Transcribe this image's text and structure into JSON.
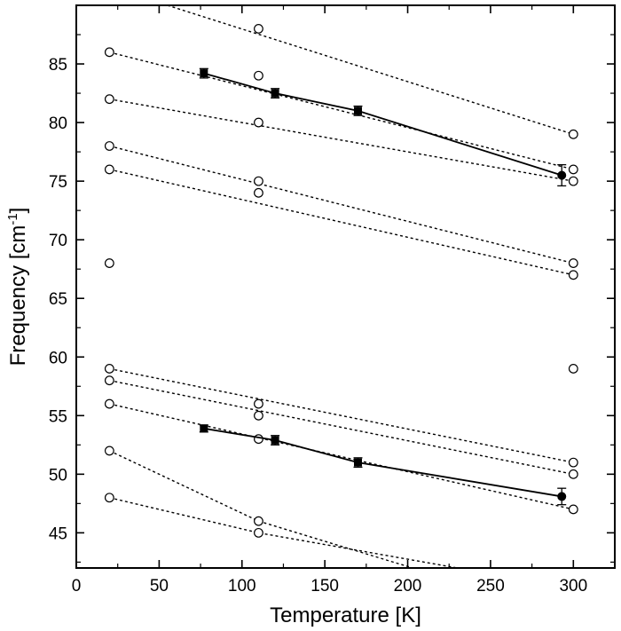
{
  "chart_data": {
    "type": "scatter",
    "title": "",
    "xlabel": "Temperature [K]",
    "ylabel_main": "Frequency [cm",
    "ylabel_sup": "-1",
    "ylabel_close": "]",
    "xlim": [
      0,
      325
    ],
    "ylim": [
      42,
      90
    ],
    "xticks": [
      0,
      50,
      100,
      150,
      200,
      250,
      300
    ],
    "yticks": [
      45,
      50,
      55,
      60,
      65,
      70,
      75,
      80,
      85
    ],
    "grid": false,
    "legend": "none",
    "measured_series": [
      {
        "marker": "filled-square",
        "line": "solid",
        "points": [
          {
            "x": 77,
            "y": 84.2,
            "err": 0.4
          },
          {
            "x": 120,
            "y": 82.5,
            "err": 0.4
          },
          {
            "x": 170,
            "y": 81.0,
            "err": 0.4
          },
          {
            "x": 293,
            "y": 75.5,
            "err": 0.9
          }
        ]
      },
      {
        "marker": "filled-square",
        "line": "solid",
        "points": [
          {
            "x": 77,
            "y": 53.9,
            "err": 0.3
          },
          {
            "x": 120,
            "y": 52.9,
            "err": 0.4
          },
          {
            "x": 170,
            "y": 51.0,
            "err": 0.4
          },
          {
            "x": 293,
            "y": 48.1,
            "err": 0.7
          }
        ]
      }
    ],
    "calculated_points": [
      {
        "x": 20,
        "y": 86
      },
      {
        "x": 20,
        "y": 82
      },
      {
        "x": 20,
        "y": 78
      },
      {
        "x": 20,
        "y": 76
      },
      {
        "x": 20,
        "y": 68
      },
      {
        "x": 20,
        "y": 59
      },
      {
        "x": 20,
        "y": 58
      },
      {
        "x": 20,
        "y": 56
      },
      {
        "x": 20,
        "y": 52
      },
      {
        "x": 20,
        "y": 48
      },
      {
        "x": 110,
        "y": 88
      },
      {
        "x": 110,
        "y": 84
      },
      {
        "x": 110,
        "y": 80
      },
      {
        "x": 110,
        "y": 75
      },
      {
        "x": 110,
        "y": 74
      },
      {
        "x": 110,
        "y": 56
      },
      {
        "x": 110,
        "y": 55
      },
      {
        "x": 110,
        "y": 53
      },
      {
        "x": 110,
        "y": 46
      },
      {
        "x": 110,
        "y": 45
      },
      {
        "x": 300,
        "y": 79
      },
      {
        "x": 300,
        "y": 76
      },
      {
        "x": 300,
        "y": 75
      },
      {
        "x": 300,
        "y": 68
      },
      {
        "x": 300,
        "y": 67
      },
      {
        "x": 300,
        "y": 59
      },
      {
        "x": 300,
        "y": 51
      },
      {
        "x": 300,
        "y": 50
      },
      {
        "x": 300,
        "y": 47
      }
    ],
    "trend_lines": [
      {
        "x": [
          55,
          300
        ],
        "y": [
          90,
          79
        ]
      },
      {
        "x": [
          20,
          300
        ],
        "y": [
          86,
          76
        ]
      },
      {
        "x": [
          20,
          300
        ],
        "y": [
          82,
          75
        ]
      },
      {
        "x": [
          20,
          300
        ],
        "y": [
          78,
          68
        ]
      },
      {
        "x": [
          20,
          300
        ],
        "y": [
          76,
          67
        ]
      },
      {
        "x": [
          20,
          300
        ],
        "y": [
          59,
          51
        ]
      },
      {
        "x": [
          20,
          300
        ],
        "y": [
          58,
          50
        ]
      },
      {
        "x": [
          20,
          300
        ],
        "y": [
          56,
          47
        ]
      },
      {
        "x": [
          20,
          110,
          203
        ],
        "y": [
          52,
          46,
          42
        ]
      },
      {
        "x": [
          20,
          110,
          230
        ],
        "y": [
          48,
          45,
          42
        ]
      }
    ]
  }
}
